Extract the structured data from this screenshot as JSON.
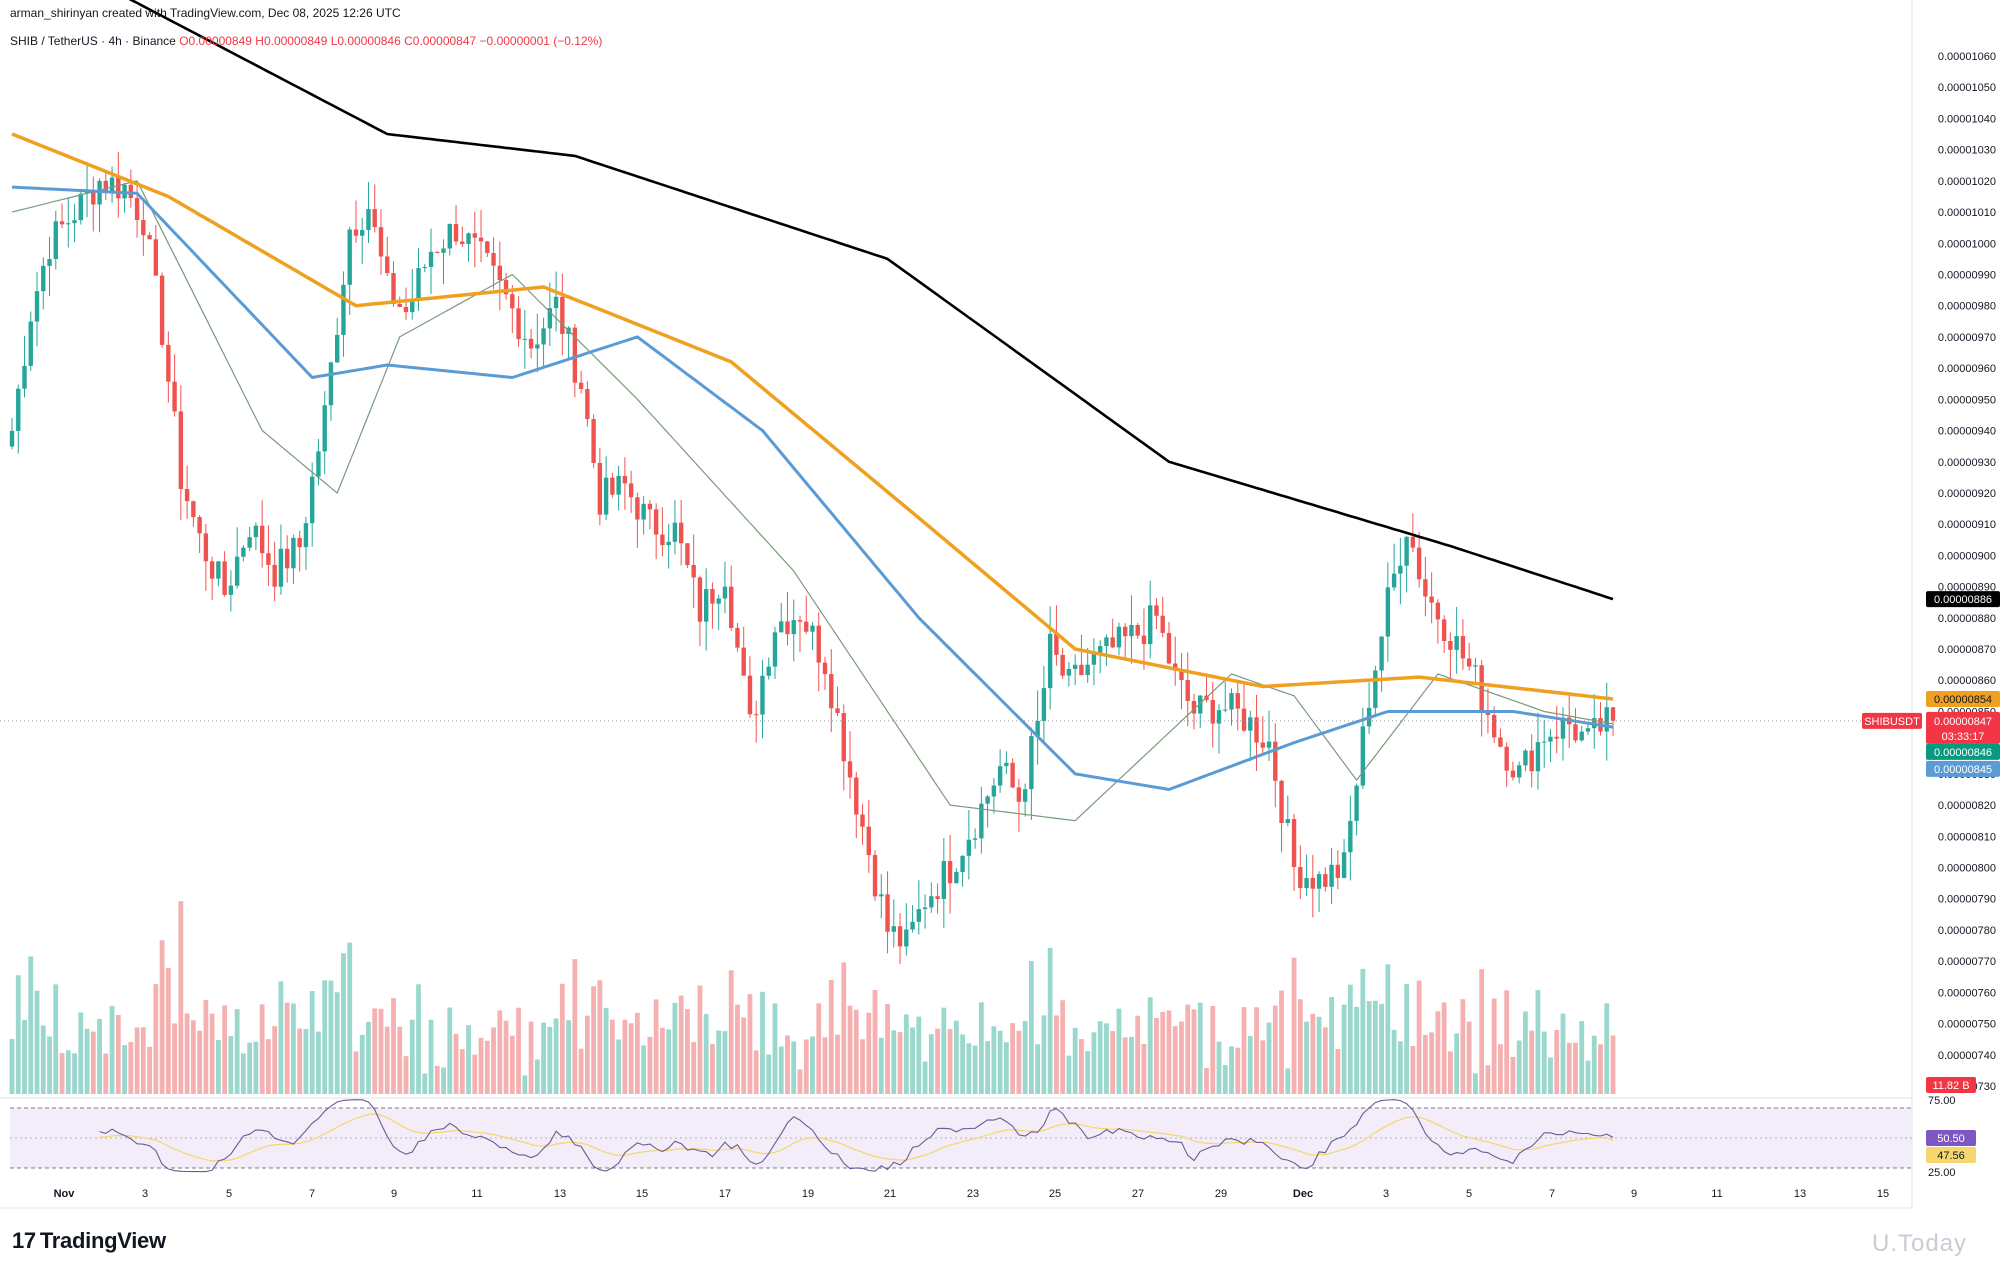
{
  "header": {
    "credit": "arman_shirinyan created with TradingView.com, Dec 08, 2025 12:26 UTC",
    "symbol": "SHIB / TetherUS · 4h · Binance",
    "o": "O0.00000849",
    "h": "H0.00000849",
    "l": "L0.00000846",
    "c": "C0.00000847",
    "change": "−0.00000001 (−0.12%)"
  },
  "branding": {
    "logo": "TradingView",
    "watermark": "U.Today"
  },
  "colors": {
    "up": "#26a69a",
    "down": "#ef5350",
    "ma_black": "#000000",
    "ma_orange": "#f0a020",
    "ma_blue": "#5b9bd5",
    "ma_thin": "#7a9a7a",
    "rsi_line": "#6b5b95",
    "rsi_ma": "#f5d76e"
  },
  "badges": {
    "ma200": "0.00000886",
    "ma100": "0.00000854",
    "symbol": "SHIBUSDT",
    "last": "0.00000847",
    "countdown": "03:33:17",
    "ma20": "0.00000846",
    "ma50": "0.00000845",
    "volume": "11.82 B",
    "rsi": "50.50",
    "rsi_ma": "47.56",
    "rsi_upper": "75.00",
    "rsi_lower": "25.00"
  },
  "chart_data": {
    "type": "candlestick",
    "timeframe": "4h",
    "y_axis_ticks": [
      "0.00001060",
      "0.00001050",
      "0.00001040",
      "0.00001030",
      "0.00001020",
      "0.00001010",
      "0.00001000",
      "0.00000990",
      "0.00000980",
      "0.00000970",
      "0.00000960",
      "0.00000950",
      "0.00000940",
      "0.00000930",
      "0.00000920",
      "0.00000910",
      "0.00000900",
      "0.00000890",
      "0.00000880",
      "0.00000870",
      "0.00000860",
      "0.00000850",
      "0.00000840",
      "0.00000830",
      "0.00000820",
      "0.00000810",
      "0.00000800",
      "0.00000790",
      "0.00000780",
      "0.00000770",
      "0.00000760",
      "0.00000750",
      "0.00000740",
      "0.00000730"
    ],
    "ylim": [
      7.3e-06,
      1.06e-05
    ],
    "x_axis_ticks": [
      "Nov",
      "3",
      "5",
      "7",
      "9",
      "11",
      "13",
      "15",
      "17",
      "19",
      "21",
      "23",
      "25",
      "27",
      "29",
      "Dec",
      "3",
      "5",
      "7",
      "9",
      "11",
      "13",
      "15"
    ],
    "close_keypoints": [
      [
        0,
        9.4e-06
      ],
      [
        3,
        9.78e-06
      ],
      [
        6,
        1e-05
      ],
      [
        10,
        1.01e-05
      ],
      [
        14,
        1.02e-05
      ],
      [
        18,
        1.018e-05
      ],
      [
        21,
        1.008e-05
      ],
      [
        24,
        9.72e-06
      ],
      [
        27,
        9.25e-06
      ],
      [
        30,
        9.05e-06
      ],
      [
        34,
        8.88e-06
      ],
      [
        38,
        9.1e-06
      ],
      [
        42,
        8.95e-06
      ],
      [
        46,
        9.03e-06
      ],
      [
        50,
        9.45e-06
      ],
      [
        54,
        1.005e-05
      ],
      [
        57,
        1.012e-05
      ],
      [
        60,
        9.85e-06
      ],
      [
        63,
        9.78e-06
      ],
      [
        67,
        9.98e-06
      ],
      [
        71,
        1.005e-05
      ],
      [
        75,
        9.95e-06
      ],
      [
        79,
        9.82e-06
      ],
      [
        83,
        9.68e-06
      ],
      [
        87,
        9.8e-06
      ],
      [
        91,
        9.55e-06
      ],
      [
        94,
        9.18e-06
      ],
      [
        98,
        9.22e-06
      ],
      [
        102,
        9.1e-06
      ],
      [
        106,
        9.08e-06
      ],
      [
        110,
        8.82e-06
      ],
      [
        114,
        8.95e-06
      ],
      [
        118,
        8.45e-06
      ],
      [
        122,
        8.78e-06
      ],
      [
        126,
        8.82e-06
      ],
      [
        130,
        8.66e-06
      ],
      [
        134,
        8.3e-06
      ],
      [
        137,
        8.05e-06
      ],
      [
        140,
        7.8e-06
      ],
      [
        143,
        7.75e-06
      ],
      [
        146,
        7.9e-06
      ],
      [
        150,
        8e-06
      ],
      [
        154,
        8.15e-06
      ],
      [
        158,
        8.32e-06
      ],
      [
        161,
        8.22e-06
      ],
      [
        164,
        8.45e-06
      ],
      [
        166,
        8.7e-06
      ],
      [
        169,
        8.58e-06
      ],
      [
        172,
        8.65e-06
      ],
      [
        176,
        8.7e-06
      ],
      [
        180,
        8.75e-06
      ],
      [
        183,
        8.8e-06
      ],
      [
        186,
        8.6e-06
      ],
      [
        189,
        8.5e-06
      ],
      [
        193,
        8.52e-06
      ],
      [
        197,
        8.48e-06
      ],
      [
        201,
        8.4e-06
      ],
      [
        205,
        8e-06
      ],
      [
        209,
        7.96e-06
      ],
      [
        213,
        8e-06
      ],
      [
        217,
        8.55e-06
      ],
      [
        220,
        8.85e-06
      ],
      [
        223,
        9.1e-06
      ],
      [
        226,
        8.88e-06
      ],
      [
        230,
        8.75e-06
      ],
      [
        234,
        8.6e-06
      ],
      [
        238,
        8.4e-06
      ],
      [
        241,
        8.3e-06
      ],
      [
        245,
        8.43e-06
      ],
      [
        249,
        8.46e-06
      ],
      [
        252,
        8.4e-06
      ],
      [
        254,
        8.45e-06
      ],
      [
        256,
        8.47e-06
      ]
    ],
    "ma200_keypoints": [
      [
        0,
        1.098e-05
      ],
      [
        60,
        1.035e-05
      ],
      [
        90,
        1.028e-05
      ],
      [
        140,
        9.95e-06
      ],
      [
        185,
        9.3e-06
      ],
      [
        230,
        9.03e-06
      ],
      [
        256,
        8.86e-06
      ]
    ],
    "ma100_keypoints": [
      [
        0,
        1.035e-05
      ],
      [
        25,
        1.015e-05
      ],
      [
        55,
        9.8e-06
      ],
      [
        85,
        9.86e-06
      ],
      [
        115,
        9.62e-06
      ],
      [
        145,
        9.12e-06
      ],
      [
        170,
        8.7e-06
      ],
      [
        200,
        8.58e-06
      ],
      [
        225,
        8.61e-06
      ],
      [
        256,
        8.54e-06
      ]
    ],
    "ma50_keypoints": [
      [
        0,
        1.018e-05
      ],
      [
        20,
        1.016e-05
      ],
      [
        48,
        9.57e-06
      ],
      [
        60,
        9.61e-06
      ],
      [
        80,
        9.57e-06
      ],
      [
        100,
        9.7e-06
      ],
      [
        120,
        9.4e-06
      ],
      [
        145,
        8.8e-06
      ],
      [
        170,
        8.3e-06
      ],
      [
        185,
        8.25e-06
      ],
      [
        205,
        8.4e-06
      ],
      [
        220,
        8.5e-06
      ],
      [
        240,
        8.5e-06
      ],
      [
        256,
        8.45e-06
      ]
    ],
    "ma20_keypoints": [
      [
        0,
        1.01e-05
      ],
      [
        20,
        1.02e-05
      ],
      [
        40,
        9.4e-06
      ],
      [
        52,
        9.2e-06
      ],
      [
        62,
        9.7e-06
      ],
      [
        80,
        9.9e-06
      ],
      [
        100,
        9.5e-06
      ],
      [
        125,
        8.95e-06
      ],
      [
        150,
        8.2e-06
      ],
      [
        170,
        8.15e-06
      ],
      [
        195,
        8.62e-06
      ],
      [
        205,
        8.55e-06
      ],
      [
        215,
        8.28e-06
      ],
      [
        228,
        8.62e-06
      ],
      [
        245,
        8.5e-06
      ],
      [
        256,
        8.46e-06
      ]
    ],
    "volume_unit": "B",
    "rsi_range": [
      0,
      100
    ],
    "rsi_bands": [
      25,
      75
    ],
    "rsi_value": 50.5,
    "rsi_ma_value": 47.56
  }
}
